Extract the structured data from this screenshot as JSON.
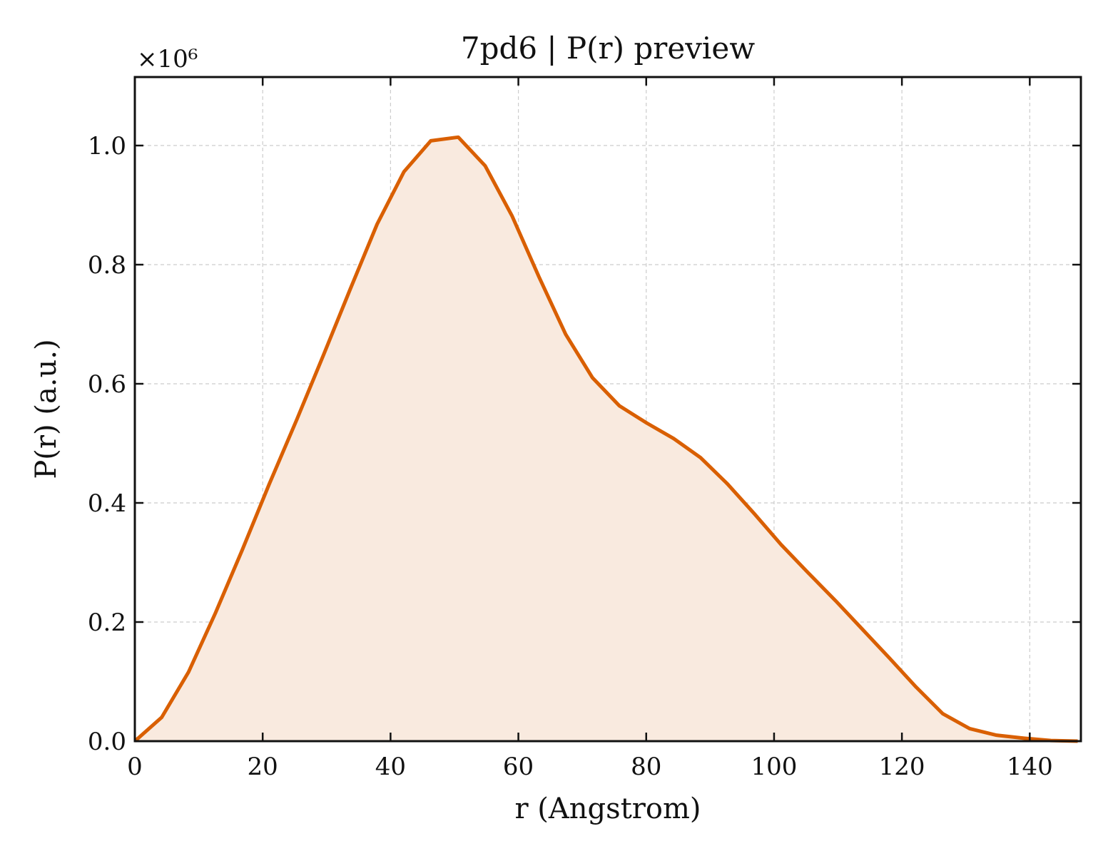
{
  "chart_data": {
    "type": "area",
    "title": "7pd6 | P(r) preview",
    "xlabel": "r (Angstrom)",
    "ylabel": "P(r) (a.u.)",
    "y_offset_label": "×10⁶",
    "xlim": [
      0,
      148
    ],
    "ylim": [
      0,
      1.115
    ],
    "xticks": [
      0,
      20,
      40,
      60,
      80,
      100,
      120,
      140
    ],
    "yticks": [
      0.0,
      0.2,
      0.4,
      0.6,
      0.8,
      1.0
    ],
    "xtick_labels": [
      "0",
      "20",
      "40",
      "60",
      "80",
      "100",
      "120",
      "140"
    ],
    "ytick_labels": [
      "0.0",
      "0.2",
      "0.4",
      "0.6",
      "0.8",
      "1.0"
    ],
    "grid": true,
    "legend": "none",
    "line_color": "#d95f02",
    "fill_color": "#f9eadf",
    "series": [
      {
        "x": [
          0,
          4.2,
          8.4,
          12.6,
          16.8,
          21.0,
          25.3,
          29.5,
          33.7,
          37.9,
          42.1,
          46.3,
          50.6,
          54.8,
          59.0,
          63.2,
          67.4,
          71.6,
          75.8,
          80.1,
          84.3,
          88.5,
          92.7,
          96.9,
          101.1,
          105.3,
          109.6,
          113.8,
          118.0,
          122.2,
          126.4,
          130.6,
          134.8,
          139.1,
          143.3,
          147.5
        ],
        "values": [
          0.0,
          0.04,
          0.116,
          0.215,
          0.321,
          0.431,
          0.539,
          0.648,
          0.759,
          0.868,
          0.956,
          1.008,
          1.014,
          0.966,
          0.882,
          0.78,
          0.683,
          0.61,
          0.563,
          0.534,
          0.508,
          0.476,
          0.432,
          0.382,
          0.33,
          0.283,
          0.236,
          0.188,
          0.14,
          0.091,
          0.046,
          0.021,
          0.01,
          0.005,
          0.001,
          0.0
        ]
      }
    ]
  }
}
